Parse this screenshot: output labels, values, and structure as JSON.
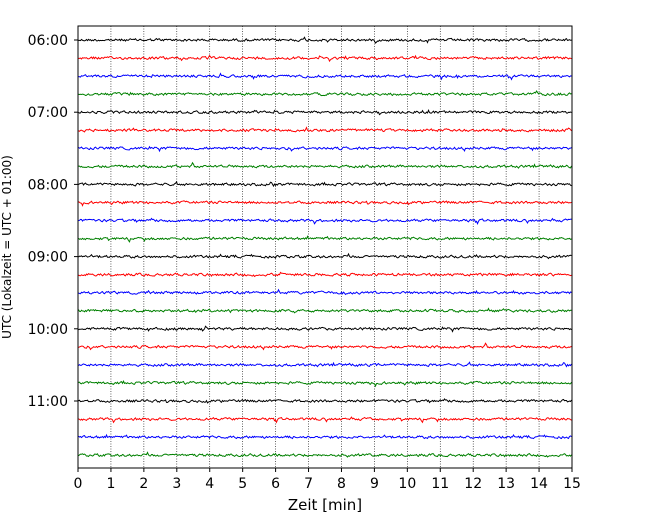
{
  "chart_data": {
    "type": "line",
    "subtype": "helicorder",
    "title": "",
    "xlabel": "Zeit  [min]",
    "ylabel": "UTC (Lokalzeit = UTC + 01:00)",
    "xlim": [
      0,
      15
    ],
    "x_ticks": [
      "0",
      "1",
      "2",
      "3",
      "4",
      "5",
      "6",
      "7",
      "8",
      "9",
      "10",
      "11",
      "12",
      "13",
      "14",
      "15"
    ],
    "y_ticks": [
      "06:00",
      "07:00",
      "08:00",
      "09:00",
      "10:00",
      "11:00"
    ],
    "grid": "vertical dotted lines at each minute",
    "trace_interval_min": 15,
    "trace_colors": [
      "#000000",
      "#ff0000",
      "#0000ff",
      "#008000"
    ],
    "trace_start_times": [
      "06:00",
      "06:15",
      "06:30",
      "06:45",
      "07:00",
      "07:15",
      "07:30",
      "07:45",
      "08:00",
      "08:15",
      "08:30",
      "08:45",
      "09:00",
      "09:15",
      "09:30",
      "09:45",
      "10:00",
      "10:15",
      "10:30",
      "10:45",
      "11:00",
      "11:15",
      "11:30",
      "11:45"
    ]
  }
}
